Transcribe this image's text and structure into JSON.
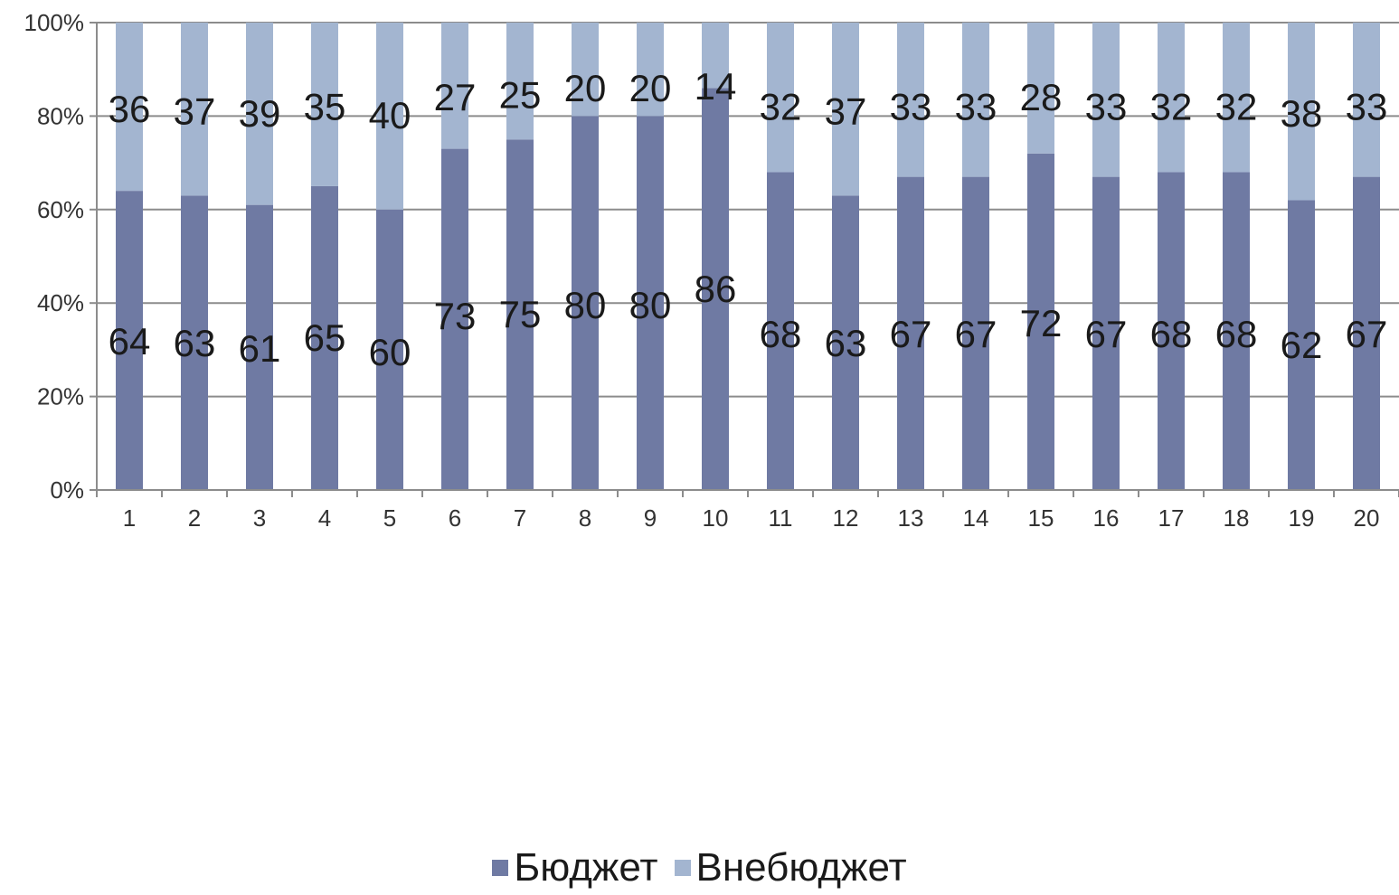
{
  "chart_data": {
    "type": "bar",
    "stacked": true,
    "percent_stacked": true,
    "categories": [
      "1",
      "2",
      "3",
      "4",
      "5",
      "6",
      "7",
      "8",
      "9",
      "10",
      "11",
      "12",
      "13",
      "14",
      "15",
      "16",
      "17",
      "18",
      "19",
      "20"
    ],
    "series": [
      {
        "name": "Бюджет",
        "color": "#6f7aa3",
        "values": [
          64,
          63,
          61,
          65,
          60,
          73,
          75,
          80,
          80,
          86,
          68,
          63,
          67,
          67,
          72,
          67,
          68,
          68,
          62,
          67
        ]
      },
      {
        "name": "Внебюджет",
        "color": "#a3b5d0",
        "values": [
          36,
          37,
          39,
          35,
          40,
          27,
          25,
          20,
          20,
          14,
          32,
          37,
          33,
          33,
          28,
          33,
          32,
          32,
          38,
          33
        ]
      }
    ],
    "yticks": [
      "0%",
      "20%",
      "40%",
      "60%",
      "80%",
      "100%"
    ],
    "ylim": [
      0,
      100
    ],
    "grid": true,
    "legend_position": "bottom"
  }
}
